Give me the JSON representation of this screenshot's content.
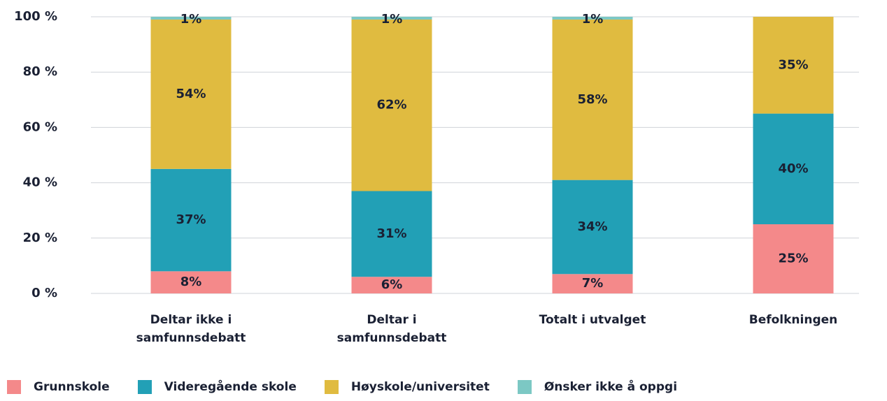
{
  "chart_data": {
    "type": "stacked_bar",
    "categories": [
      "Deltar ikke i samfunnsdebatt",
      "Deltar i samfunnsdebatt",
      "Totalt i utvalget",
      "Befolkningen"
    ],
    "series": [
      {
        "name": "Grunnskole",
        "color": "#f4898a",
        "values": [
          8,
          6,
          7,
          25
        ],
        "value_labels": [
          "8%",
          "6%",
          "7%",
          "25%"
        ]
      },
      {
        "name": "Videregående skole",
        "color": "#22a0b6",
        "values": [
          37,
          31,
          34,
          40
        ],
        "value_labels": [
          "37%",
          "31%",
          "34%",
          "40%"
        ]
      },
      {
        "name": "Høyskole/universitet",
        "color": "#e0bb40",
        "values": [
          54,
          62,
          58,
          35
        ],
        "value_labels": [
          "54%",
          "62%",
          "58%",
          "35%"
        ]
      },
      {
        "name": "Ønsker ikke å oppgi",
        "color": "#7cc8c4",
        "values": [
          1,
          1,
          1,
          null
        ],
        "value_labels": [
          "1%",
          "1%",
          "1%",
          null
        ]
      }
    ],
    "ylim": [
      0,
      100
    ],
    "yticks": [
      {
        "value": 0,
        "label": "0 %"
      },
      {
        "value": 20,
        "label": "20 %"
      },
      {
        "value": 40,
        "label": "40 %"
      },
      {
        "value": 60,
        "label": "60 %"
      },
      {
        "value": 80,
        "label": "80 %"
      },
      {
        "value": 100,
        "label": "100 %"
      }
    ],
    "grid": true,
    "legend": "bottom"
  }
}
